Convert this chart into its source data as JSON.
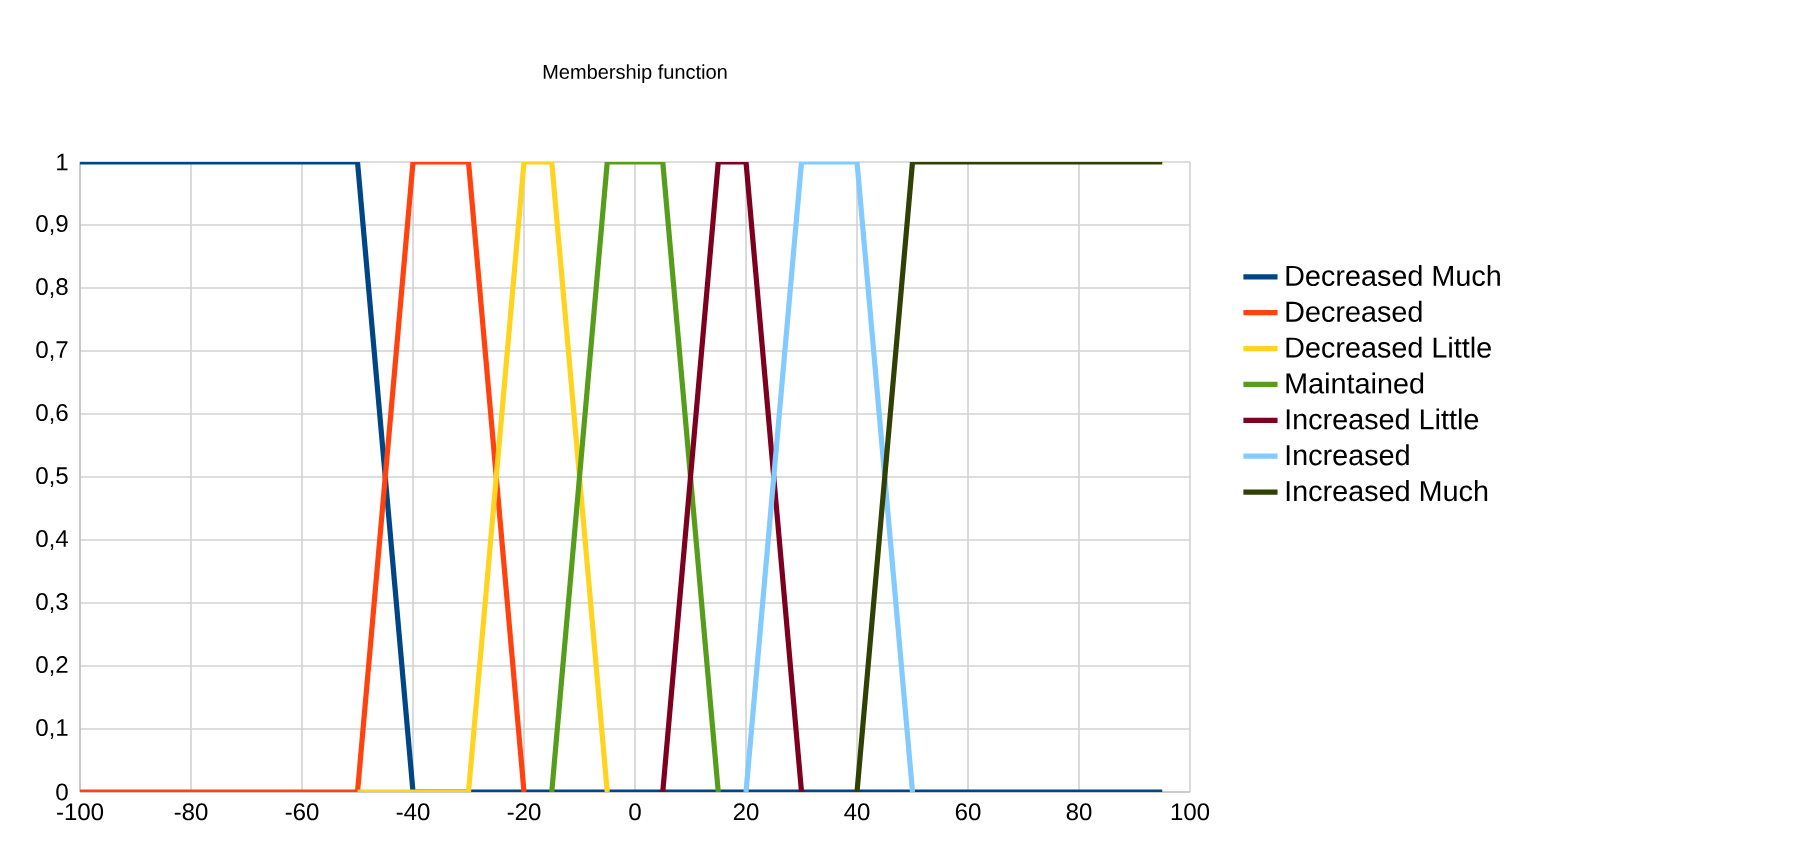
{
  "chart_data": {
    "type": "line",
    "title": "Membership function",
    "xlim": [
      -100,
      100
    ],
    "xticks": [
      -100,
      -80,
      -60,
      -40,
      -20,
      0,
      20,
      40,
      60,
      80,
      100
    ],
    "ylim": [
      0,
      1
    ],
    "yticks": [
      0,
      {
        "value": 0.1,
        "label": "0,1"
      },
      {
        "value": 0.2,
        "label": "0,2"
      },
      {
        "value": 0.3,
        "label": "0,3"
      },
      {
        "value": 0.4,
        "label": "0,4"
      },
      {
        "value": 0.5,
        "label": "0,5"
      },
      {
        "value": 0.6,
        "label": "0,6"
      },
      {
        "value": 0.7,
        "label": "0,7"
      },
      {
        "value": 0.8,
        "label": "0,8"
      },
      {
        "value": 0.9,
        "label": "0,9"
      },
      1
    ],
    "grid": true,
    "legend": "right",
    "marker": "none",
    "line_style": "solid",
    "series": [
      {
        "name": "Decreased Much",
        "color": "#004586",
        "x": [
          -100,
          -50,
          -40,
          95
        ],
        "values": [
          1,
          1,
          0,
          0
        ]
      },
      {
        "name": "Decreased",
        "color": "#ff420e",
        "x": [
          -100,
          -50,
          -40,
          -30,
          -20
        ],
        "values": [
          0,
          0,
          1,
          1,
          0
        ]
      },
      {
        "name": "Decreased Little",
        "color": "#ffd320",
        "x": [
          -50,
          -30,
          -20,
          -15,
          -5
        ],
        "values": [
          0,
          0,
          1,
          1,
          0
        ]
      },
      {
        "name": "Maintained",
        "color": "#579d1c",
        "x": [
          -15,
          -5,
          5,
          15
        ],
        "values": [
          0,
          1,
          1,
          0
        ]
      },
      {
        "name": "Increased Little",
        "color": "#7e0021",
        "x": [
          5,
          15,
          20,
          30
        ],
        "values": [
          0,
          1,
          1,
          0
        ]
      },
      {
        "name": "Increased",
        "color": "#83caff",
        "x": [
          20,
          30,
          40,
          50
        ],
        "values": [
          0,
          1,
          1,
          0
        ]
      },
      {
        "name": "Increased Much",
        "color": "#314004",
        "x": [
          40,
          50,
          95
        ],
        "values": [
          0,
          1,
          1
        ]
      }
    ]
  }
}
